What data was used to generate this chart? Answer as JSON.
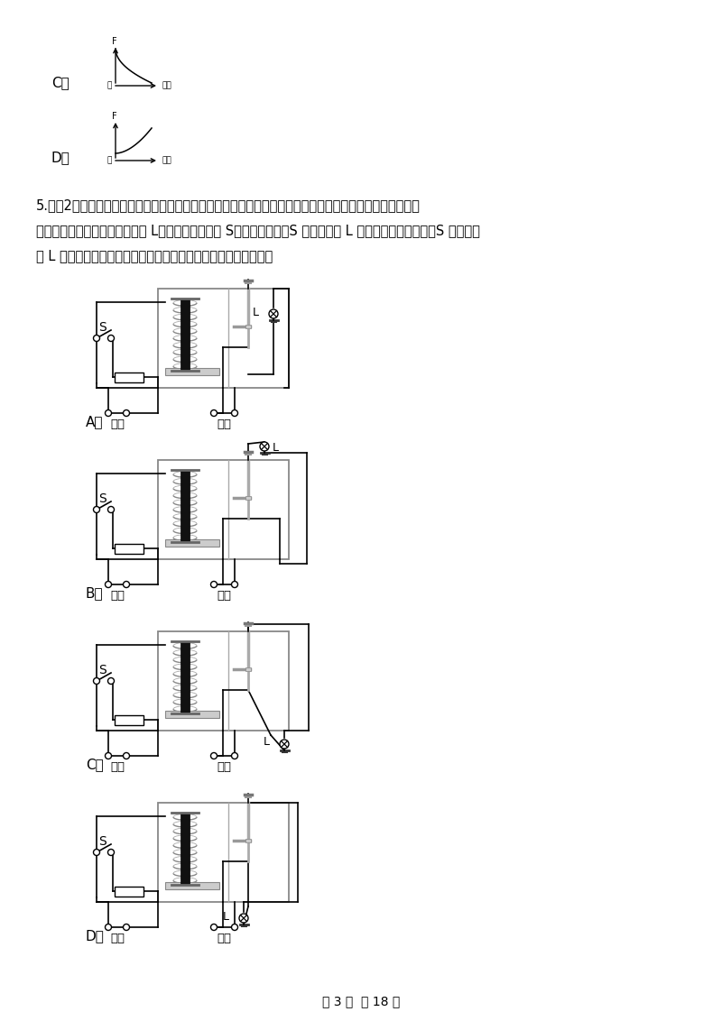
{
  "bg_color": "#ffffff",
  "q5_line1": "5.　（2分）城市下水道井盖丢失导致行人坠入下水道的悲剧时有发生，令人痛心。为此，某同学设计了一种",
  "q5_line2": "警示电路：在井口安装一环形灯 L，井盖相当于开关 S；正常情况下（S 闭合），灯 L 不亮；一旦井盖丢失（S 断开），",
  "q5_line3": "灯 L 即亮起，以警示行人。如图所示中电路符合要求的是（　　）",
  "optA": "A．",
  "optB": "B．",
  "optC": "C．",
  "optD": "D．",
  "opt_C_top": "C．",
  "opt_D_top": "D．",
  "elec_src": "电源",
  "bottom_text": "第 3 页  共 18 页"
}
